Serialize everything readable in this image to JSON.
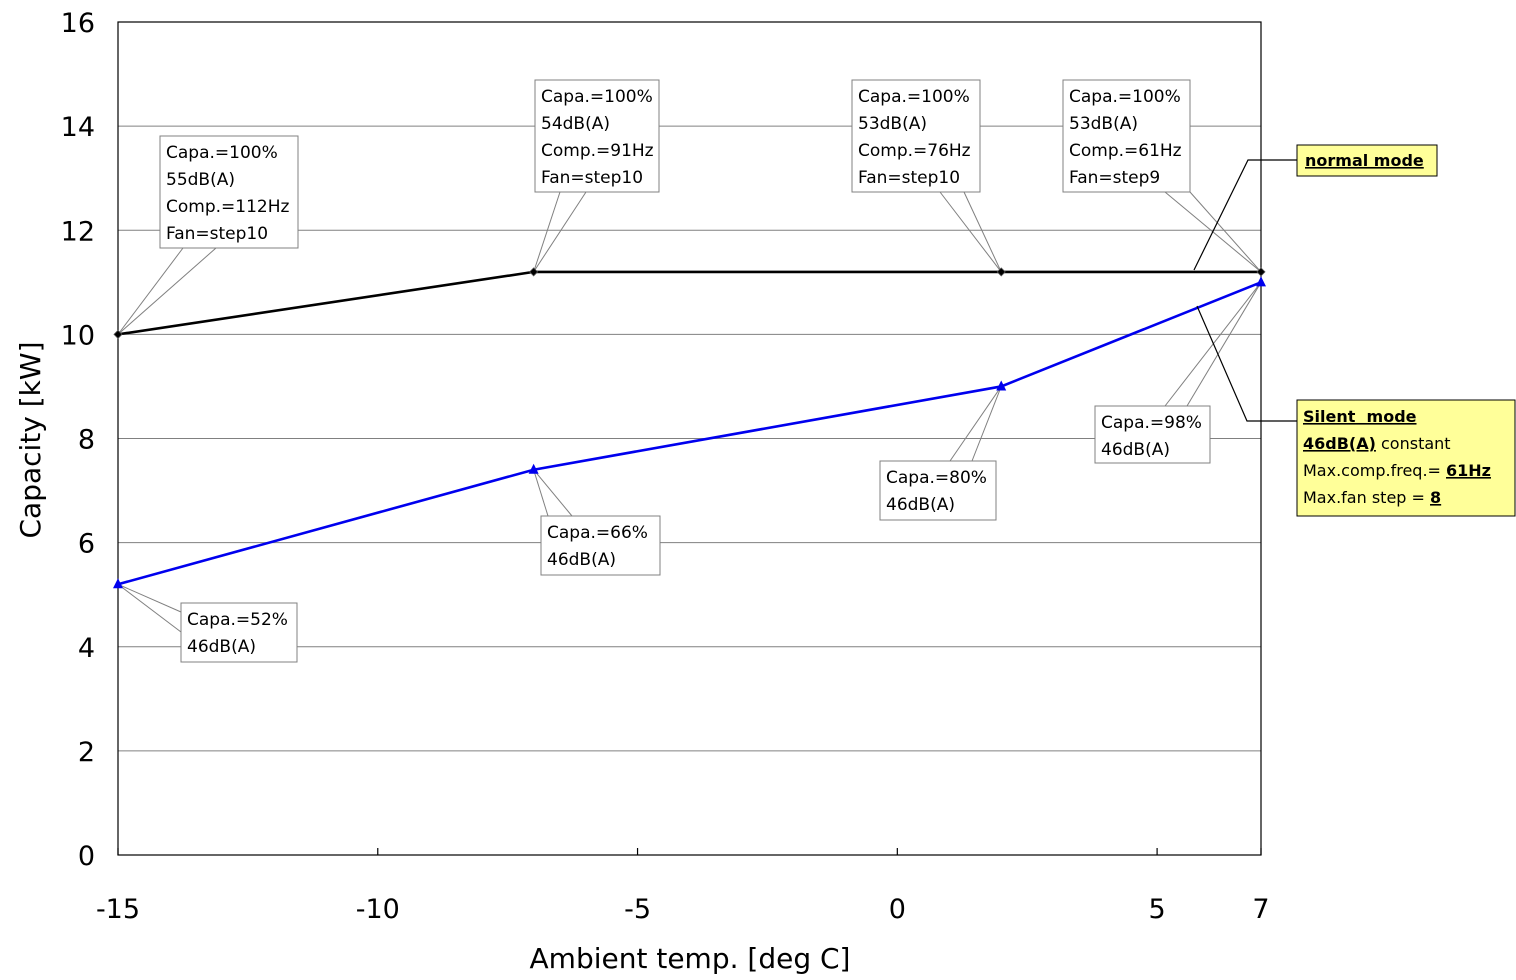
{
  "chart_data": {
    "type": "line",
    "xlabel": "Ambient temp. [deg C]",
    "ylabel": "Capacity [kW]",
    "xlim": [
      -15,
      7
    ],
    "ylim": [
      0,
      16
    ],
    "xticks": [
      -15,
      -10,
      -5,
      0,
      5,
      7
    ],
    "yticks": [
      0,
      2,
      4,
      6,
      8,
      10,
      12,
      14,
      16
    ],
    "grid": "horizontal",
    "series": [
      {
        "name": "normal mode",
        "color": "#000000",
        "marker": "diamond",
        "x": [
          -15,
          -7,
          2,
          7
        ],
        "y": [
          10.0,
          11.2,
          11.2,
          11.2
        ],
        "annotations": [
          [
            "Capa.=100%",
            "55dB(A)",
            "Comp.=112Hz",
            "Fan=step10"
          ],
          [
            "Capa.=100%",
            "54dB(A)",
            "Comp.=91Hz",
            "Fan=step10"
          ],
          [
            "Capa.=100%",
            "53dB(A)",
            "Comp.=76Hz",
            "Fan=step10"
          ],
          [
            "Capa.=100%",
            "53dB(A)",
            "Comp.=61Hz",
            "Fan=step9"
          ]
        ]
      },
      {
        "name": "Silent mode",
        "color": "#0000ee",
        "marker": "triangle",
        "x": [
          -15,
          -7,
          2,
          7
        ],
        "y": [
          5.2,
          7.4,
          9.0,
          11.0
        ],
        "annotations": [
          [
            "Capa.=52%",
            "46dB(A)"
          ],
          [
            "Capa.=66%",
            "46dB(A)"
          ],
          [
            "Capa.=80%",
            "46dB(A)"
          ],
          [
            "Capa.=98%",
            "46dB(A)"
          ]
        ]
      }
    ],
    "legend_normal": "normal mode",
    "legend_silent": {
      "title": "Silent  mode",
      "line2_bold": "46dB(A)",
      "line2_rest": " constant",
      "line3_text": "Max.comp.freq.= ",
      "line3_bold": "61Hz",
      "line4_text": "Max.fan step = ",
      "line4_bold": "8"
    },
    "callout_fill": "#ffff99"
  }
}
